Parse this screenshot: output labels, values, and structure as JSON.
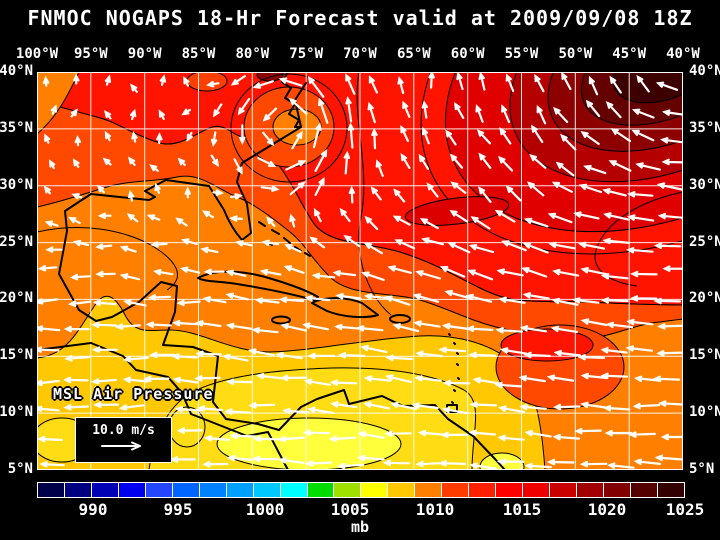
{
  "title": "FNMOC NOGAPS 18-Hr Forecast valid at 2009/09/08 18Z",
  "map": {
    "overlay_label": "MSL Air Pressure",
    "wind_scale_label": "10.0 m/s",
    "lon_labels": [
      "100°W",
      "95°W",
      "90°W",
      "85°W",
      "80°W",
      "75°W",
      "70°W",
      "65°W",
      "60°W",
      "55°W",
      "50°W",
      "45°W",
      "40°W"
    ],
    "lat_labels": [
      "40°N",
      "35°N",
      "30°N",
      "25°N",
      "20°N",
      "15°N",
      "10°N",
      "5°N"
    ]
  },
  "colorbar": {
    "unit": "mb",
    "ticks": [
      "990",
      "995",
      "1000",
      "1005",
      "1010",
      "1015",
      "1020",
      "1025"
    ],
    "colors": [
      "#00004a",
      "#000080",
      "#0000b4",
      "#0000ee",
      "#2546ff",
      "#0064ff",
      "#0082ff",
      "#00a0ff",
      "#00c8ff",
      "#00ffff",
      "#00dc00",
      "#a0e000",
      "#ffff00",
      "#ffc800",
      "#ff8000",
      "#ff3c00",
      "#ff2000",
      "#ff0000",
      "#ee0000",
      "#c80000",
      "#a00000",
      "#820000",
      "#550000",
      "#320000"
    ]
  },
  "colors": {
    "background": "#000000",
    "text": "#ffffff",
    "grid": "#ffffff",
    "coastline": "#000000",
    "wind_arrows": "#ffffff"
  }
}
